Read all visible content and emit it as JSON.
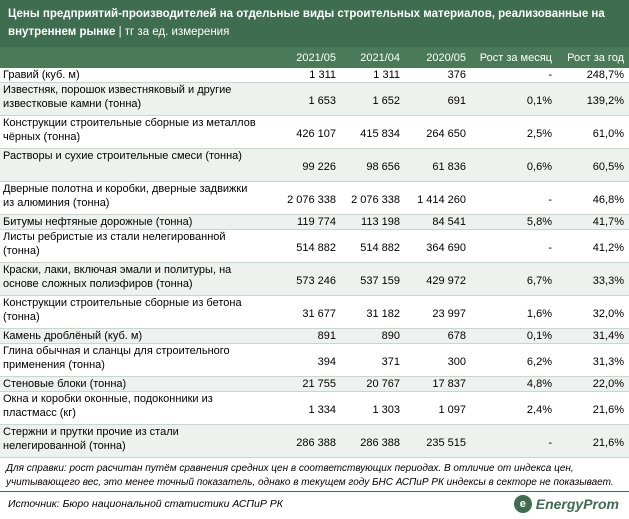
{
  "header": {
    "title": "Цены предприятий-производителей на отдельные виды строительных материалов, реализованные на внутреннем рынке",
    "unit": " | тг за ед. измерения"
  },
  "table": {
    "columns": [
      "",
      "2021/05",
      "2021/04",
      "2020/05",
      "Рост за месяц",
      "Рост за год"
    ],
    "rows": [
      {
        "name": "Гравий (куб. м)",
        "v1": "1 311",
        "v2": "1 311",
        "v3": "376",
        "m": "-",
        "y": "248,7%"
      },
      {
        "name": "Известняк, порошок известняковый и другие известковые камни (тонна)",
        "v1": "1 653",
        "v2": "1 652",
        "v3": "691",
        "m": "0,1%",
        "y": "139,2%"
      },
      {
        "name": "Конструкции строительные сборные из металлов чёрных (тонна)",
        "v1": "426 107",
        "v2": "415 834",
        "v3": "264 650",
        "m": "2,5%",
        "y": "61,0%"
      },
      {
        "name": "Растворы и сухие строительные смеси (тонна)",
        "v1": "99 226",
        "v2": "98 656",
        "v3": "61 836",
        "m": "0,6%",
        "y": "60,5%"
      },
      {
        "name": "Дверные полотна и коробки, дверные задвижки из алюминия (тонна)",
        "v1": "2 076 338",
        "v2": "2 076 338",
        "v3": "1 414 260",
        "m": "-",
        "y": "46,8%"
      },
      {
        "name": "Битумы нефтяные дорожные (тонна)",
        "v1": "119 774",
        "v2": "113 198",
        "v3": "84 541",
        "m": "5,8%",
        "y": "41,7%"
      },
      {
        "name": "Листы ребристые из стали нелегированной (тонна)",
        "v1": "514 882",
        "v2": "514 882",
        "v3": "364 690",
        "m": "-",
        "y": "41,2%"
      },
      {
        "name": "Краски, лаки, включая эмали и политуры, на основе сложных полиэфиров (тонна)",
        "v1": "573 246",
        "v2": "537 159",
        "v3": "429 972",
        "m": "6,7%",
        "y": "33,3%"
      },
      {
        "name": "Конструкции строительные сборные из бетона (тонна)",
        "v1": "31 677",
        "v2": "31 182",
        "v3": "23 997",
        "m": "1,6%",
        "y": "32,0%"
      },
      {
        "name": "Камень дроблёный (куб. м)",
        "v1": "891",
        "v2": "890",
        "v3": "678",
        "m": "0,1%",
        "y": "31,4%"
      },
      {
        "name": "Глина обычная и сланцы для строительного применения (тонна)",
        "v1": "394",
        "v2": "371",
        "v3": "300",
        "m": "6,2%",
        "y": "31,3%"
      },
      {
        "name": "Стеновые блоки (тонна)",
        "v1": "21 755",
        "v2": "20 767",
        "v3": "17 837",
        "m": "4,8%",
        "y": "22,0%"
      },
      {
        "name": "Окна и коробки оконные, подоконники из пластмасс (кг)",
        "v1": "1 334",
        "v2": "1 303",
        "v3": "1 097",
        "m": "2,4%",
        "y": "21,6%"
      },
      {
        "name": "Стержни и прутки прочие из стали нелегированной (тонна)",
        "v1": "286 388",
        "v2": "286 388",
        "v3": "235 515",
        "m": "-",
        "y": "21,6%"
      }
    ]
  },
  "note": "Для справки: рост расчитан путём сравнения средних цен в соответствующих периодах. В отличие от индекса цен, учитывающего вес, это менее точный показатель, однако в текущем году БНС АСПиР РК индексы в секторе не показывает.",
  "footer": {
    "source": "Источник: Бюро национальной статистики АСПиР РК",
    "brand": "EnergyProm",
    "logo_glyph": "e"
  }
}
